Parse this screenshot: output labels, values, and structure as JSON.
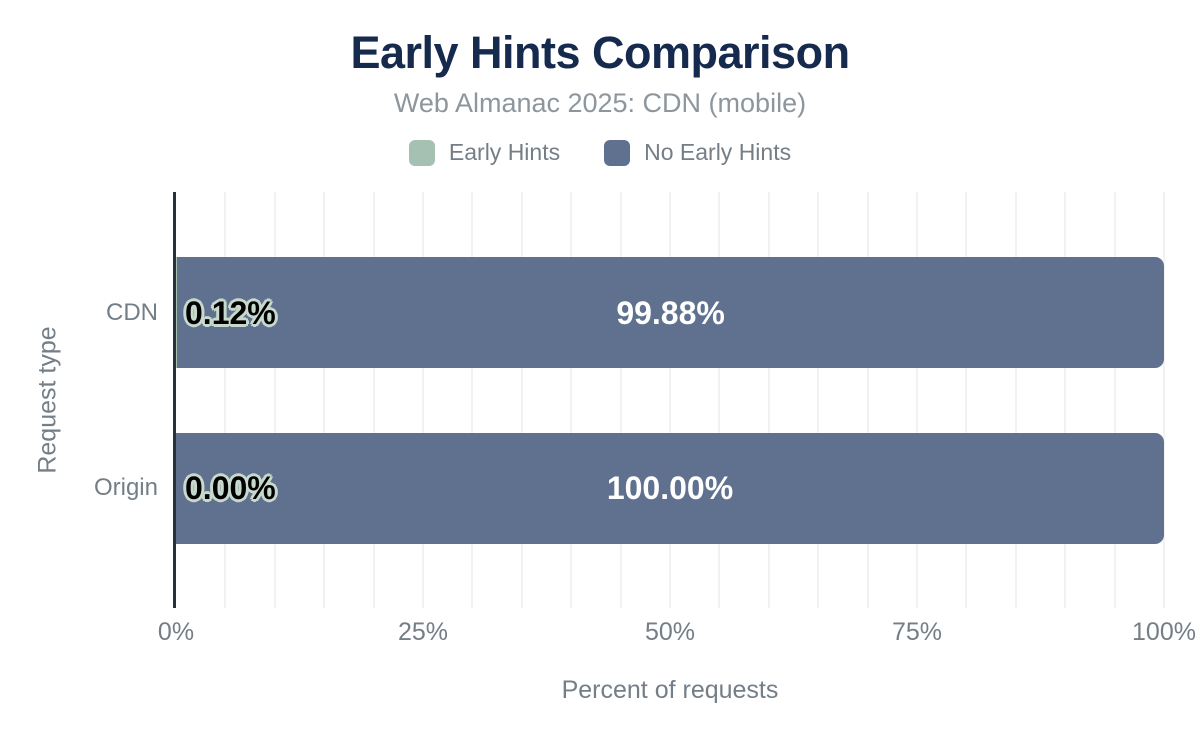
{
  "chart_data": {
    "type": "bar",
    "orientation": "horizontal",
    "stacked": true,
    "title": "Early Hints Comparison",
    "subtitle": "Web Almanac 2025: CDN (mobile)",
    "categories": [
      "CDN",
      "Origin"
    ],
    "series": [
      {
        "name": "Early Hints",
        "color": "#a5c1b2",
        "values": [
          0.12,
          0.0
        ],
        "data_labels": [
          "0.12%",
          "0.00%"
        ],
        "label_placement": "start",
        "label_color": "#000000",
        "label_outline": "#c6d9cc"
      },
      {
        "name": "No Early Hints",
        "color": "#5f718e",
        "values": [
          99.88,
          100.0
        ],
        "data_labels": [
          "99.88%",
          "100.00%"
        ],
        "label_placement": "center",
        "label_color": "#ffffff",
        "label_outline": ""
      }
    ],
    "xlabel": "Percent of requests",
    "ylabel": "Request type",
    "xlim": [
      0,
      100
    ],
    "x_ticks": [
      {
        "label": "0%",
        "value": 0
      },
      {
        "label": "25%",
        "value": 25
      },
      {
        "label": "50%",
        "value": 50
      },
      {
        "label": "75%",
        "value": 75
      },
      {
        "label": "100%",
        "value": 100
      }
    ],
    "grid": {
      "step": 5,
      "color": "#f2f2f2",
      "on": true
    },
    "legend_position": "top",
    "axis_line_color": "#2a3138",
    "text_colors": {
      "title": "#152a4d",
      "subtitle": "#8d969d",
      "axis": "#747e87"
    }
  }
}
